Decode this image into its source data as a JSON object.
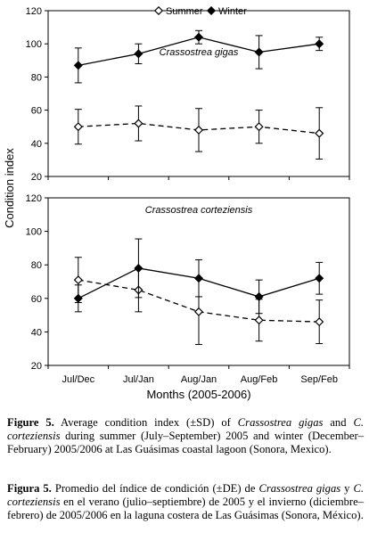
{
  "chart_data": {
    "type": "line",
    "categories": [
      "Jul/Dec",
      "Jul/Jan",
      "Aug/Jan",
      "Aug/Feb",
      "Sep/Feb"
    ],
    "xlabel": "Months (2005-2006)",
    "ylabel": "Condition index",
    "legend": {
      "position": "top",
      "entries": [
        "Summer",
        "Winter"
      ]
    },
    "grid": false,
    "panels": [
      {
        "title": "Crassostrea gigas",
        "ylim": [
          20,
          120
        ],
        "yticks": [
          "20",
          "40",
          "60",
          "80",
          "100",
          "120"
        ],
        "series": [
          {
            "name": "Winter",
            "marker": "filled-diamond",
            "line": "solid",
            "values": [
              87,
              94,
              104,
              95,
              100
            ],
            "errors": [
              10.5,
              6,
              4,
              10,
              4
            ]
          },
          {
            "name": "Summer",
            "marker": "open-diamond",
            "line": "dashed",
            "values": [
              50,
              52,
              48,
              50,
              46
            ],
            "errors": [
              10.5,
              10.5,
              13,
              10,
              15.5
            ]
          }
        ]
      },
      {
        "title": "Crassostrea corteziensis",
        "ylim": [
          20,
          120
        ],
        "yticks": [
          "20",
          "40",
          "60",
          "80",
          "100",
          "120"
        ],
        "series": [
          {
            "name": "Winter",
            "marker": "filled-diamond",
            "line": "solid",
            "values": [
              60,
              78,
              72,
              61,
              72
            ],
            "errors": [
              8,
              17.5,
              11,
              10,
              9.5
            ]
          },
          {
            "name": "Summer",
            "marker": "open-diamond",
            "line": "dashed",
            "values": [
              71,
              65,
              52,
              47,
              46
            ],
            "errors": [
              13.5,
              13,
              19.5,
              12.5,
              13
            ]
          }
        ]
      }
    ]
  },
  "caption_en": {
    "label": "Figure 5.",
    "t1": " Average condition index (±SD) of ",
    "sp1": "Crassostrea gigas",
    "t2": " and ",
    "sp2": "C. corteziensis",
    "t3": " during summer (July–September) 2005 and winter (December–February) 2005/2006 at Las Guásimas coastal lagoon (Sonora, Mexico)."
  },
  "caption_es": {
    "label": "Figura 5.",
    "t1": " Promedio del índice de condición (±DE) de ",
    "sp1": "Crassostrea gigas",
    "t2": " y ",
    "sp2": "C. corteziensis",
    "t3": " en el verano (julio–septiembre) de 2005 y el invierno (diciembre–febrero) de 2005/2006 en la laguna costera de Las Guásimas (Sonora, México)."
  }
}
